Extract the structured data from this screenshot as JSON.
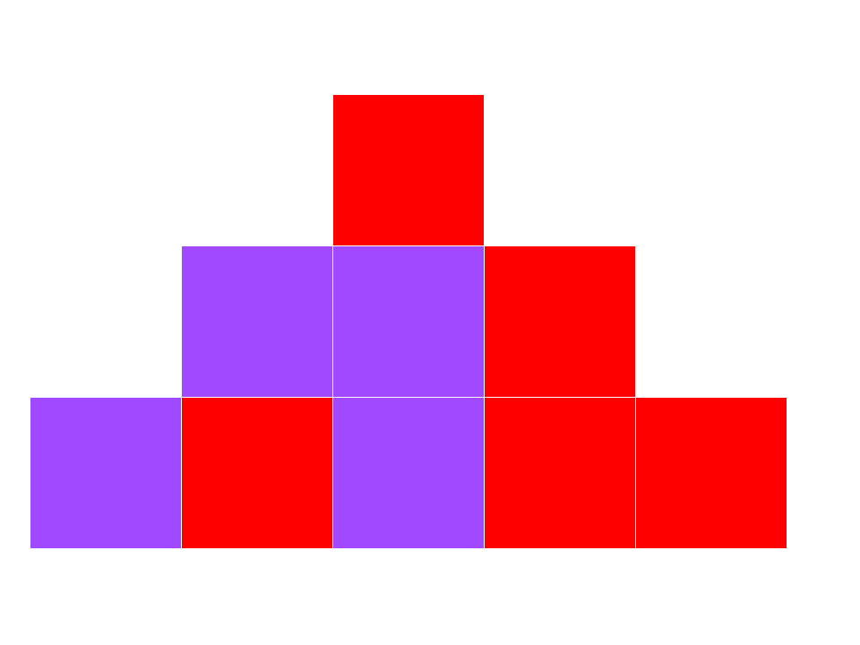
{
  "palette": {
    "purple": "#a049ff",
    "red": "#ff0000",
    "background": "#ffffff"
  },
  "grid": {
    "columns": 5,
    "rows": 3
  },
  "tiles": [
    {
      "col": 2,
      "row": 0,
      "color": "red"
    },
    {
      "col": 1,
      "row": 1,
      "color": "purple"
    },
    {
      "col": 2,
      "row": 1,
      "color": "purple"
    },
    {
      "col": 3,
      "row": 1,
      "color": "red"
    },
    {
      "col": 0,
      "row": 2,
      "color": "purple"
    },
    {
      "col": 1,
      "row": 2,
      "color": "red"
    },
    {
      "col": 2,
      "row": 2,
      "color": "purple"
    },
    {
      "col": 3,
      "row": 2,
      "color": "red"
    },
    {
      "col": 4,
      "row": 2,
      "color": "red"
    }
  ]
}
